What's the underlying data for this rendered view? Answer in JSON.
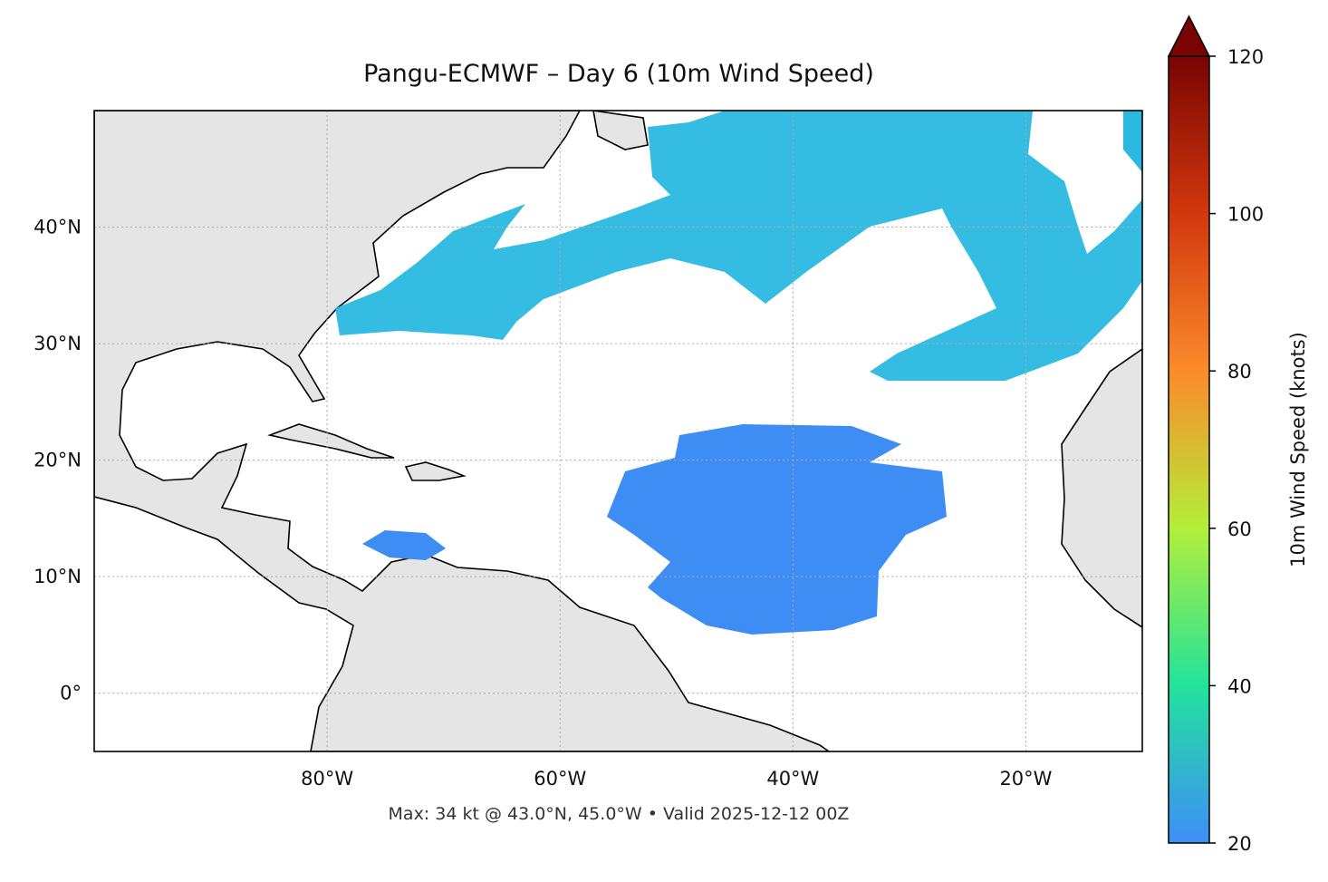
{
  "chart_data": {
    "type": "map",
    "title": "Pangu-ECMWF – Day 6 (10m Wind Speed)",
    "footer": "Max: 34 kt @ 43.0°N, 45.0°W • Valid 2025-12-12 00Z",
    "xlim": [
      -100,
      -10
    ],
    "ylim": [
      -5,
      50
    ],
    "xticks": [
      {
        "value": -80,
        "label": "80°W"
      },
      {
        "value": -60,
        "label": "60°W"
      },
      {
        "value": -40,
        "label": "40°W"
      },
      {
        "value": -20,
        "label": "20°W"
      }
    ],
    "yticks": [
      {
        "value": 0,
        "label": "0°"
      },
      {
        "value": 10,
        "label": "10°N"
      },
      {
        "value": 20,
        "label": "20°N"
      },
      {
        "value": 30,
        "label": "30°N"
      },
      {
        "value": 40,
        "label": "40°N"
      }
    ],
    "grid": true,
    "colorbar": {
      "label": "10m Wind Speed (knots)",
      "lim": [
        20,
        120
      ],
      "ticks": [
        20,
        40,
        60,
        80,
        100,
        120
      ],
      "colors": [
        "#3e8ef7",
        "#22e39b",
        "#b2ef3a",
        "#fb8b2b",
        "#d2380d",
        "#790403"
      ]
    }
  }
}
